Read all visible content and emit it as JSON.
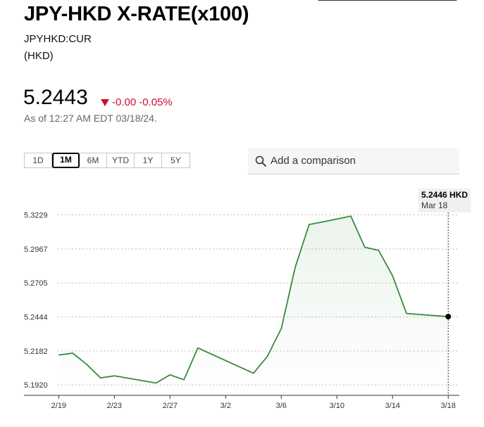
{
  "header": {
    "title": "JPY-HKD X-RATE(x100)",
    "ticker": "JPYHKD:CUR",
    "currency": "(HKD)"
  },
  "quote": {
    "price": "5.2443",
    "change": "-0.00",
    "change_pct": "-0.05%",
    "as_of": "As of 12:27 AM EDT 03/18/24.",
    "change_color": "#c8102e"
  },
  "ranges": {
    "items": [
      "1D",
      "1M",
      "6M",
      "YTD",
      "1Y",
      "5Y"
    ],
    "active": "1M"
  },
  "comparison": {
    "label": "Add a comparison",
    "icon": "search-icon"
  },
  "tooltip": {
    "value": "5.2446 HKD",
    "date": "Mar 18"
  },
  "chart_data": {
    "type": "area",
    "line_color": "#3a8a3a",
    "grid": true,
    "y_ticks": [
      "5.3229",
      "5.2967",
      "5.2705",
      "5.2444",
      "5.2182",
      "5.1920"
    ],
    "y_tick_values": [
      5.3229,
      5.2967,
      5.2705,
      5.2444,
      5.2182,
      5.192
    ],
    "ylim": [
      5.184,
      5.328
    ],
    "x_ticks": [
      "2/19",
      "2/23",
      "2/27",
      "3/2",
      "3/6",
      "3/10",
      "3/14",
      "3/18"
    ],
    "x_tick_values": [
      0,
      4,
      8,
      12,
      16,
      20,
      24,
      28
    ],
    "xlim": [
      -2.5,
      28.8
    ],
    "x": [
      0,
      1,
      2,
      3,
      4,
      7,
      8,
      9,
      10,
      14,
      15,
      16,
      17,
      18,
      19,
      21,
      22,
      23,
      24,
      25,
      28
    ],
    "values": [
      5.215,
      5.2165,
      5.208,
      5.1975,
      5.199,
      5.1935,
      5.1998,
      5.196,
      5.2205,
      5.201,
      5.214,
      5.2355,
      5.2825,
      5.3155,
      5.3175,
      5.3219,
      5.298,
      5.2955,
      5.276,
      5.247,
      5.2446
    ]
  }
}
